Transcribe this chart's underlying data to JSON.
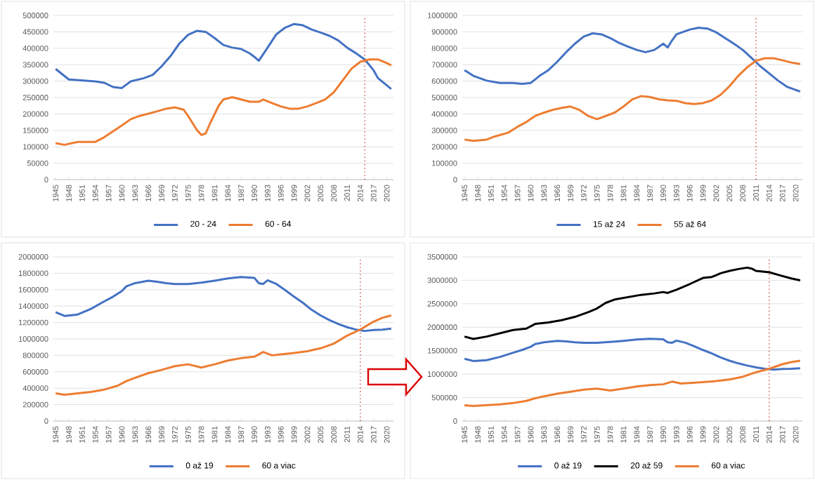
{
  "chart_data": [
    {
      "type": "line",
      "xlim": [
        1944.5,
        2021.5
      ],
      "xticks": [
        1945,
        1948,
        1951,
        1954,
        1957,
        1960,
        1963,
        1966,
        1969,
        1972,
        1975,
        1978,
        1981,
        1984,
        1987,
        1990,
        1993,
        1996,
        1999,
        2002,
        2005,
        2008,
        2011,
        2014,
        2017,
        2020
      ],
      "ylim": [
        0,
        500000
      ],
      "yticks": [
        0,
        50000,
        100000,
        150000,
        200000,
        250000,
        300000,
        350000,
        400000,
        450000,
        500000
      ],
      "grid": "y",
      "legend": "bottom",
      "series": [
        {
          "name": "20 - 24",
          "color": "#4472c4",
          "x": [
            1945,
            1948,
            1951,
            1954,
            1956,
            1958,
            1960,
            1962,
            1965,
            1967,
            1969,
            1971,
            1973,
            1975,
            1977,
            1979,
            1981,
            1983,
            1985,
            1987,
            1989,
            1990,
            1991,
            1993,
            1995,
            1997,
            1999,
            2001,
            2003,
            2005,
            2007,
            2009,
            2011,
            2013,
            2015,
            2017,
            2018,
            2020,
            2021
          ],
          "values": [
            337000,
            305000,
            302000,
            299000,
            295000,
            282000,
            279000,
            299000,
            309000,
            319000,
            345000,
            376000,
            414000,
            441000,
            453000,
            450000,
            431000,
            410000,
            402000,
            398000,
            384000,
            374000,
            362000,
            402000,
            443000,
            463000,
            474000,
            470000,
            457000,
            448000,
            438000,
            424000,
            402000,
            385000,
            366000,
            333000,
            309000,
            287000,
            276000
          ]
        },
        {
          "name": "60 - 64",
          "color": "#ed7d31",
          "x": [
            1945,
            1947,
            1950,
            1954,
            1956,
            1958,
            1960,
            1962,
            1964,
            1966,
            1968,
            1970,
            1972,
            1974,
            1975,
            1977,
            1978,
            1979,
            1980,
            1982,
            1983,
            1985,
            1987,
            1989,
            1991,
            1992,
            1994,
            1996,
            1998,
            2000,
            2002,
            2004,
            2006,
            2008,
            2010,
            2012,
            2014,
            2016,
            2018,
            2020,
            2021
          ],
          "values": [
            111000,
            106000,
            115000,
            115000,
            129000,
            147000,
            165000,
            184000,
            194000,
            201000,
            208000,
            216000,
            220000,
            213000,
            194000,
            151000,
            136000,
            141000,
            172000,
            227000,
            244000,
            251000,
            244000,
            237000,
            237000,
            244000,
            233000,
            223000,
            216000,
            216000,
            223000,
            233000,
            244000,
            266000,
            302000,
            338000,
            359000,
            366000,
            366000,
            355000,
            348000
          ]
        }
      ],
      "ref_lines": [
        {
          "axis": "x",
          "value": 2015,
          "color": "#c00000",
          "line_style": "dotted"
        }
      ]
    },
    {
      "type": "line",
      "xlim": [
        1944.5,
        2021.5
      ],
      "xticks": [
        1945,
        1948,
        1951,
        1954,
        1957,
        1960,
        1963,
        1966,
        1969,
        1972,
        1975,
        1978,
        1981,
        1984,
        1987,
        1990,
        1993,
        1996,
        1999,
        2002,
        2005,
        2008,
        2011,
        2014,
        2017,
        2020
      ],
      "ylim": [
        0,
        1000000
      ],
      "yticks": [
        0,
        100000,
        200000,
        300000,
        400000,
        500000,
        600000,
        700000,
        800000,
        900000,
        1000000
      ],
      "grid": "y",
      "legend": "bottom",
      "series": [
        {
          "name": "15 až 24",
          "color": "#4472c4",
          "x": [
            1945,
            1947,
            1950,
            1953,
            1956,
            1958,
            1960,
            1962,
            1964,
            1966,
            1968,
            1970,
            1972,
            1974,
            1976,
            1978,
            1980,
            1982,
            1984,
            1986,
            1988,
            1990,
            1991,
            1992,
            1993,
            1996,
            1998,
            2000,
            2002,
            2004,
            2006,
            2008,
            2010,
            2012,
            2014,
            2016,
            2018,
            2020,
            2021
          ],
          "values": [
            667000,
            632000,
            603000,
            589000,
            589000,
            583000,
            589000,
            632000,
            667000,
            718000,
            776000,
            828000,
            871000,
            891000,
            885000,
            862000,
            833000,
            810000,
            790000,
            776000,
            790000,
            828000,
            805000,
            848000,
            885000,
            914000,
            925000,
            920000,
            897000,
            862000,
            828000,
            790000,
            741000,
            690000,
            647000,
            603000,
            566000,
            546000,
            537000
          ]
        },
        {
          "name": "55 až 64",
          "color": "#ed7d31",
          "x": [
            1945,
            1947,
            1950,
            1952,
            1955,
            1957,
            1959,
            1961,
            1963,
            1965,
            1967,
            1969,
            1971,
            1973,
            1975,
            1977,
            1979,
            1981,
            1983,
            1985,
            1987,
            1989,
            1991,
            1993,
            1995,
            1997,
            1999,
            2001,
            2003,
            2005,
            2007,
            2009,
            2011,
            2013,
            2015,
            2017,
            2019,
            2021
          ],
          "values": [
            244000,
            236000,
            244000,
            264000,
            287000,
            322000,
            351000,
            388000,
            408000,
            425000,
            437000,
            445000,
            425000,
            388000,
            368000,
            388000,
            408000,
            445000,
            489000,
            509000,
            503000,
            489000,
            483000,
            480000,
            466000,
            460000,
            466000,
            483000,
            517000,
            569000,
            632000,
            684000,
            724000,
            739000,
            739000,
            727000,
            713000,
            704000
          ]
        }
      ],
      "ref_lines": [
        {
          "axis": "x",
          "value": 2011,
          "color": "#c00000",
          "line_style": "dotted"
        }
      ]
    },
    {
      "type": "line",
      "xlim": [
        1944.5,
        2021.5
      ],
      "xticks": [
        1945,
        1948,
        1951,
        1954,
        1957,
        1960,
        1963,
        1966,
        1969,
        1972,
        1975,
        1978,
        1981,
        1984,
        1987,
        1990,
        1993,
        1996,
        1999,
        2002,
        2005,
        2008,
        2011,
        2014,
        2017,
        2020
      ],
      "ylim": [
        0,
        2000000
      ],
      "yticks": [
        0,
        200000,
        400000,
        600000,
        800000,
        1000000,
        1200000,
        1400000,
        1600000,
        1800000,
        2000000
      ],
      "grid": "y",
      "legend": "bottom",
      "series": [
        {
          "name": "0 až 19",
          "color": "#4472c4",
          "x": [
            1945,
            1947,
            1950,
            1953,
            1956,
            1958,
            1960,
            1961,
            1963,
            1966,
            1968,
            1970,
            1972,
            1975,
            1978,
            1981,
            1984,
            1987,
            1990,
            1991,
            1992,
            1993,
            1995,
            1997,
            1999,
            2001,
            2003,
            2005,
            2007,
            2009,
            2011,
            2013,
            2015,
            2017,
            2019,
            2021
          ],
          "values": [
            1326000,
            1280000,
            1297000,
            1366000,
            1457000,
            1514000,
            1583000,
            1640000,
            1680000,
            1709000,
            1697000,
            1680000,
            1669000,
            1669000,
            1686000,
            1709000,
            1737000,
            1754000,
            1743000,
            1680000,
            1669000,
            1714000,
            1669000,
            1594000,
            1514000,
            1440000,
            1354000,
            1286000,
            1229000,
            1183000,
            1143000,
            1114000,
            1097000,
            1109000,
            1114000,
            1126000
          ]
        },
        {
          "name": "60 a viac",
          "color": "#ed7d31",
          "x": [
            1945,
            1947,
            1950,
            1953,
            1956,
            1959,
            1961,
            1963,
            1966,
            1969,
            1972,
            1975,
            1978,
            1981,
            1984,
            1987,
            1990,
            1992,
            1994,
            1996,
            1999,
            2002,
            2005,
            2008,
            2011,
            2014,
            2017,
            2019,
            2021
          ],
          "values": [
            337000,
            320000,
            337000,
            354000,
            383000,
            429000,
            486000,
            526000,
            583000,
            623000,
            669000,
            691000,
            651000,
            691000,
            737000,
            766000,
            783000,
            840000,
            800000,
            811000,
            829000,
            851000,
            886000,
            943000,
            1040000,
            1114000,
            1211000,
            1257000,
            1286000
          ]
        }
      ],
      "ref_lines": [
        {
          "axis": "x",
          "value": 2014,
          "color": "#c00000",
          "line_style": "dotted"
        }
      ]
    },
    {
      "type": "line",
      "xlim": [
        1944.5,
        2021.5
      ],
      "xticks": [
        1945,
        1948,
        1951,
        1954,
        1957,
        1960,
        1963,
        1966,
        1969,
        1972,
        1975,
        1978,
        1981,
        1984,
        1987,
        1990,
        1993,
        1996,
        1999,
        2002,
        2005,
        2008,
        2011,
        2014,
        2017,
        2020
      ],
      "ylim": [
        0,
        3500000
      ],
      "yticks": [
        0,
        500000,
        1000000,
        1500000,
        2000000,
        2500000,
        3000000,
        3500000
      ],
      "grid": "y",
      "legend": "bottom",
      "series": [
        {
          "name": "0 až 19",
          "color": "#4472c4",
          "x": [
            1945,
            1947,
            1950,
            1953,
            1956,
            1958,
            1960,
            1961,
            1963,
            1966,
            1968,
            1970,
            1972,
            1975,
            1978,
            1981,
            1984,
            1987,
            1990,
            1991,
            1992,
            1993,
            1995,
            1997,
            1999,
            2001,
            2003,
            2005,
            2007,
            2009,
            2011,
            2013,
            2015,
            2017,
            2019,
            2021
          ],
          "values": [
            1326000,
            1280000,
            1297000,
            1366000,
            1457000,
            1514000,
            1583000,
            1640000,
            1680000,
            1709000,
            1697000,
            1680000,
            1669000,
            1669000,
            1686000,
            1709000,
            1737000,
            1754000,
            1743000,
            1680000,
            1669000,
            1714000,
            1669000,
            1594000,
            1514000,
            1440000,
            1354000,
            1286000,
            1229000,
            1183000,
            1143000,
            1114000,
            1097000,
            1109000,
            1114000,
            1126000
          ]
        },
        {
          "name": "20 až 59",
          "color": "#000000",
          "x": [
            1945,
            1947,
            1950,
            1953,
            1956,
            1959,
            1960,
            1961,
            1964,
            1967,
            1970,
            1973,
            1975,
            1977,
            1979,
            1982,
            1985,
            1988,
            1990,
            1991,
            1993,
            1996,
            1999,
            2001,
            2003,
            2005,
            2007,
            2009,
            2010,
            2011,
            2014,
            2017,
            2019,
            2021
          ],
          "values": [
            1800000,
            1750000,
            1800000,
            1870000,
            1940000,
            1970000,
            2020000,
            2070000,
            2100000,
            2150000,
            2220000,
            2320000,
            2400000,
            2520000,
            2590000,
            2640000,
            2690000,
            2720000,
            2750000,
            2730000,
            2800000,
            2920000,
            3050000,
            3070000,
            3150000,
            3200000,
            3240000,
            3270000,
            3250000,
            3200000,
            3170000,
            3090000,
            3040000,
            3000000
          ]
        },
        {
          "name": "60 a viac",
          "color": "#ed7d31",
          "x": [
            1945,
            1947,
            1950,
            1953,
            1956,
            1959,
            1961,
            1963,
            1966,
            1969,
            1972,
            1975,
            1978,
            1981,
            1984,
            1987,
            1990,
            1992,
            1994,
            1996,
            1999,
            2002,
            2005,
            2008,
            2011,
            2014,
            2017,
            2019,
            2021
          ],
          "values": [
            337000,
            320000,
            337000,
            354000,
            383000,
            429000,
            486000,
            526000,
            583000,
            623000,
            669000,
            691000,
            651000,
            691000,
            737000,
            766000,
            783000,
            840000,
            800000,
            811000,
            829000,
            851000,
            886000,
            943000,
            1040000,
            1114000,
            1211000,
            1257000,
            1286000
          ]
        }
      ],
      "ref_lines": [
        {
          "axis": "x",
          "value": 2014,
          "color": "#c00000",
          "line_style": "dotted"
        }
      ]
    }
  ]
}
